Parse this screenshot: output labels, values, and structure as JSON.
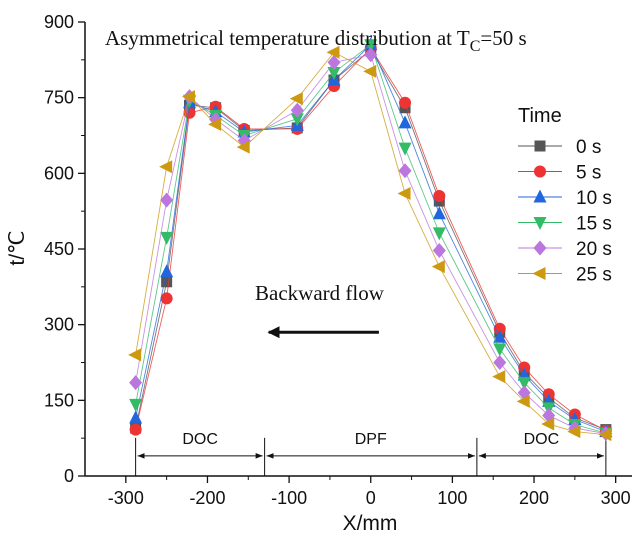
{
  "chart_data": {
    "type": "line",
    "title": "Asymmetrical temperature distribution at T",
    "title_sub": "C",
    "title_suffix": "=50 s",
    "xlabel": "X/mm",
    "ylabel": "t/℃",
    "xlim": [
      -350,
      320
    ],
    "ylim": [
      0,
      900
    ],
    "xticks": [
      -300,
      -200,
      -100,
      0,
      100,
      200,
      300
    ],
    "yticks": [
      0,
      150,
      300,
      450,
      600,
      750,
      900
    ],
    "grid": false,
    "legend_title": "Time",
    "legend_position": "right",
    "x": [
      -288,
      -250,
      -222,
      -190,
      -155,
      -90,
      -45,
      0,
      42,
      84,
      158,
      188,
      218,
      250,
      288
    ],
    "series": [
      {
        "name": "0 s",
        "color": "#555555",
        "marker": "square",
        "values": [
          95,
          385,
          735,
          730,
          685,
          690,
          785,
          845,
          730,
          545,
          285,
          205,
          155,
          115,
          92
        ]
      },
      {
        "name": "5 s",
        "color": "#ee3333",
        "marker": "circle",
        "values": [
          92,
          352,
          720,
          732,
          688,
          688,
          773,
          848,
          740,
          555,
          292,
          215,
          162,
          122,
          90
        ]
      },
      {
        "name": "10 s",
        "color": "#2266dd",
        "marker": "triangle-up",
        "values": [
          115,
          405,
          740,
          722,
          682,
          695,
          785,
          855,
          700,
          520,
          275,
          200,
          148,
          112,
          88
        ]
      },
      {
        "name": "15 s",
        "color": "#33bb66",
        "marker": "triangle-down",
        "values": [
          142,
          473,
          745,
          715,
          675,
          708,
          800,
          855,
          650,
          482,
          252,
          185,
          135,
          102,
          85
        ]
      },
      {
        "name": "20 s",
        "color": "#bb77dd",
        "marker": "diamond",
        "values": [
          185,
          547,
          752,
          707,
          665,
          725,
          820,
          835,
          605,
          447,
          225,
          165,
          120,
          95,
          84
        ]
      },
      {
        "name": "25 s",
        "color": "#cc9911",
        "marker": "triangle-left",
        "values": [
          240,
          613,
          752,
          697,
          652,
          748,
          840,
          802,
          560,
          415,
          197,
          148,
          103,
          88,
          82
        ]
      }
    ],
    "annotations": {
      "flow_text": "Backward flow",
      "arrow": {
        "x_from": 10,
        "x_to": -125,
        "y": 285
      },
      "regions": [
        {
          "label": "DOC",
          "x_start": -288,
          "x_end": -130
        },
        {
          "label": "DPF",
          "x_start": -130,
          "x_end": 130
        },
        {
          "label": "DOC",
          "x_start": 130,
          "x_end": 288
        }
      ],
      "region_y": 40
    }
  }
}
